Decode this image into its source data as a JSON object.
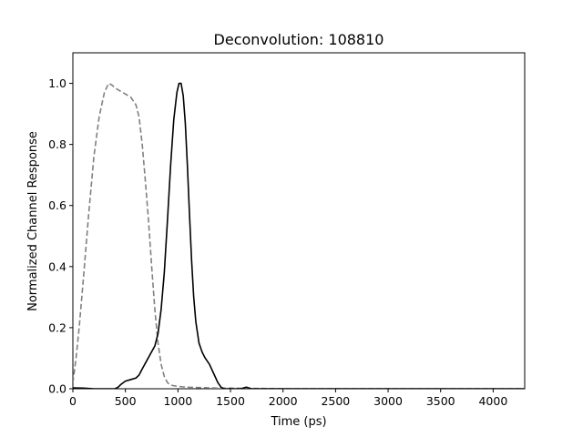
{
  "chart_data": {
    "type": "line",
    "title": "Deconvolution: 108810",
    "xlabel": "Time (ps)",
    "ylabel": "Normalized Channel Response",
    "xlim": [
      0,
      4300
    ],
    "ylim": [
      0,
      1.1
    ],
    "grid": false,
    "xticks": [
      0,
      500,
      1000,
      1500,
      2000,
      2500,
      3000,
      3500,
      4000
    ],
    "xtick_labels": [
      "0",
      "500",
      "1000",
      "1500",
      "2000",
      "2500",
      "3000",
      "3500",
      "4000"
    ],
    "yticks": [
      0,
      0.2,
      0.4,
      0.6,
      0.8,
      1.0
    ],
    "ytick_labels": [
      "0.0",
      "0.2",
      "0.4",
      "0.6",
      "0.8",
      "1.0"
    ],
    "series": [
      {
        "style": "dashed",
        "color": "#808080",
        "x": [
          0,
          30,
          60,
          100,
          150,
          200,
          250,
          300,
          340,
          370,
          400,
          450,
          500,
          550,
          600,
          630,
          660,
          690,
          720,
          750,
          780,
          810,
          840,
          870,
          900,
          930,
          960,
          1000,
          1050,
          1100,
          1200,
          1300,
          1400,
          1500,
          1700,
          1800,
          2000,
          4300
        ],
        "y": [
          0.02,
          0.1,
          0.2,
          0.36,
          0.57,
          0.76,
          0.89,
          0.97,
          1.0,
          0.995,
          0.985,
          0.975,
          0.965,
          0.955,
          0.93,
          0.89,
          0.8,
          0.68,
          0.55,
          0.4,
          0.26,
          0.15,
          0.08,
          0.04,
          0.02,
          0.012,
          0.01,
          0.008,
          0.006,
          0.005,
          0.004,
          0.003,
          0.002,
          0.002,
          0.001,
          0.001,
          0.0,
          0.0
        ]
      },
      {
        "style": "solid",
        "color": "#000000",
        "x": [
          0,
          100,
          200,
          300,
          350,
          400,
          430,
          460,
          500,
          550,
          600,
          630,
          660,
          700,
          740,
          780,
          810,
          840,
          870,
          900,
          930,
          960,
          990,
          1010,
          1030,
          1050,
          1070,
          1090,
          1110,
          1130,
          1150,
          1170,
          1200,
          1230,
          1260,
          1300,
          1340,
          1380,
          1410,
          1440,
          1470,
          1500,
          1550,
          1600,
          1650,
          1700,
          1750,
          1800,
          4300
        ],
        "y": [
          0.003,
          0.002,
          0.0,
          0.0,
          0.0,
          0.0,
          0.005,
          0.015,
          0.025,
          0.03,
          0.035,
          0.045,
          0.065,
          0.09,
          0.115,
          0.14,
          0.18,
          0.26,
          0.38,
          0.55,
          0.73,
          0.88,
          0.97,
          1.0,
          1.0,
          0.96,
          0.87,
          0.73,
          0.57,
          0.42,
          0.3,
          0.22,
          0.15,
          0.12,
          0.1,
          0.08,
          0.05,
          0.02,
          0.005,
          0.0,
          0.0,
          0.0,
          0.0,
          0.0,
          0.005,
          0.0,
          0.0,
          0.0,
          0.0
        ]
      }
    ]
  }
}
